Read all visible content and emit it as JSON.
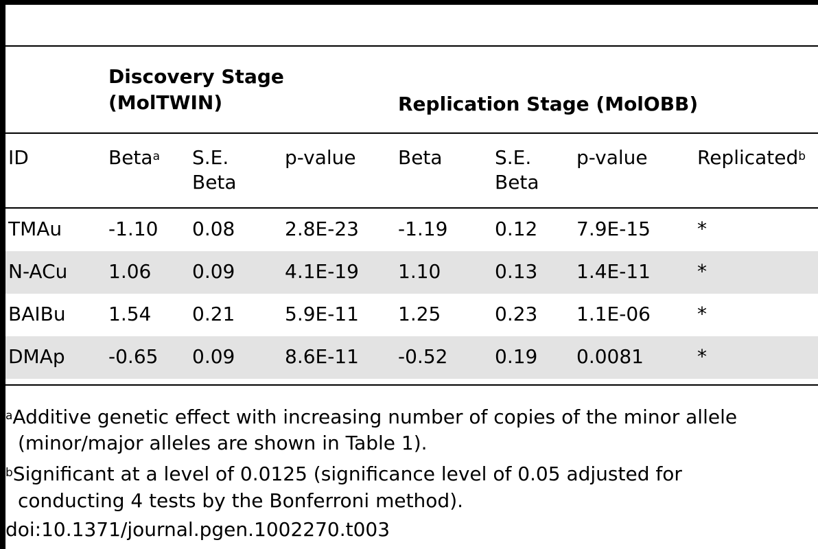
{
  "table": {
    "group_headers": {
      "discovery_line1": "Discovery Stage",
      "discovery_line2": "(MolTWIN)",
      "replication": "Replication Stage (MolOBB)"
    },
    "columns": {
      "id": "ID",
      "beta1": "Beta",
      "beta1_sup": "a",
      "se1_line1": "S.E.",
      "se1_line2": "Beta",
      "p1": "p-value",
      "beta2": "Beta",
      "se2_line1": "S.E.",
      "se2_line2": "Beta",
      "p2": "p-value",
      "replicated": "Replicated",
      "replicated_sup": "b"
    },
    "rows": [
      {
        "id": "TMAu",
        "beta1": "-1.10",
        "se1": "0.08",
        "p1": "2.8E-23",
        "beta2": "-1.19",
        "se2": "0.12",
        "p2": "7.9E-15",
        "replicated": "*"
      },
      {
        "id": "N-ACu",
        "beta1": "1.06",
        "se1": "0.09",
        "p1": "4.1E-19",
        "beta2": "1.10",
        "se2": "0.13",
        "p2": "1.4E-11",
        "replicated": "*"
      },
      {
        "id": "BAIBu",
        "beta1": "1.54",
        "se1": "0.21",
        "p1": "5.9E-11",
        "beta2": "1.25",
        "se2": "0.23",
        "p2": "1.1E-06",
        "replicated": "*"
      },
      {
        "id": "DMAp",
        "beta1": "-0.65",
        "se1": "0.09",
        "p1": "8.6E-11",
        "beta2": "-0.52",
        "se2": "0.19",
        "p2": "0.0081",
        "replicated": "*"
      }
    ]
  },
  "footnotes": {
    "a_mark": "a",
    "a_line1": "Additive genetic effect with increasing number of copies of the minor allele",
    "a_line2": "(minor/major alleles are shown in Table 1).",
    "b_mark": "b",
    "b_line1": "Significant at a level of 0.0125 (significance level of 0.05 adjusted for",
    "b_line2": "conducting 4 tests by the Bonferroni method).",
    "doi": "doi:10.1371/journal.pgen.1002270.t003"
  }
}
